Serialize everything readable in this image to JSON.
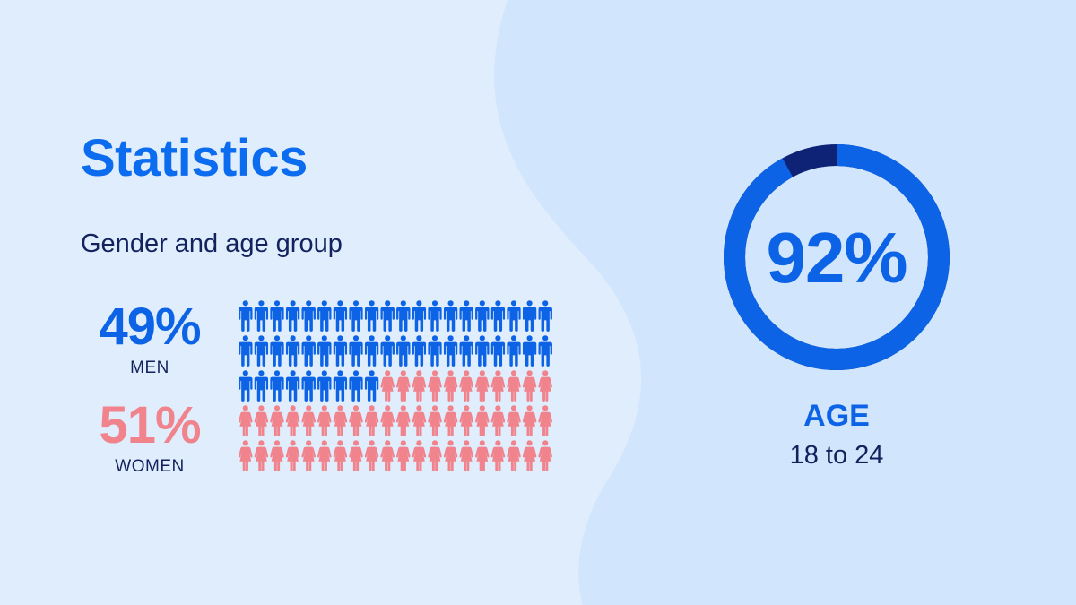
{
  "slide": {
    "title": "Statistics",
    "subtitle": "Gender and age group"
  },
  "colors": {
    "background_left": "#dfedfc",
    "background_right": "#d1e5fd",
    "primary_blue": "#0c63e6",
    "title_blue": "#0b6cf0",
    "dark_navy": "#0f2376",
    "text_navy": "#13225c",
    "pink": "#f0838c"
  },
  "chart_data": [
    {
      "type": "pictograph",
      "series": [
        {
          "name": "MEN",
          "value": 49,
          "label": "49%",
          "icon": "man-icon",
          "color": "#0c63e6"
        },
        {
          "name": "WOMEN",
          "value": 51,
          "label": "51%",
          "icon": "woman-icon",
          "color": "#f0838c"
        }
      ],
      "total_icons": 100,
      "rows": 5,
      "columns": 20
    },
    {
      "type": "pie",
      "variant": "donut",
      "values": [
        92,
        8
      ],
      "center_label": "92%",
      "title": "AGE",
      "subtitle": "18 to 24",
      "colors": [
        "#0c63e6",
        "#0f2376"
      ]
    }
  ]
}
